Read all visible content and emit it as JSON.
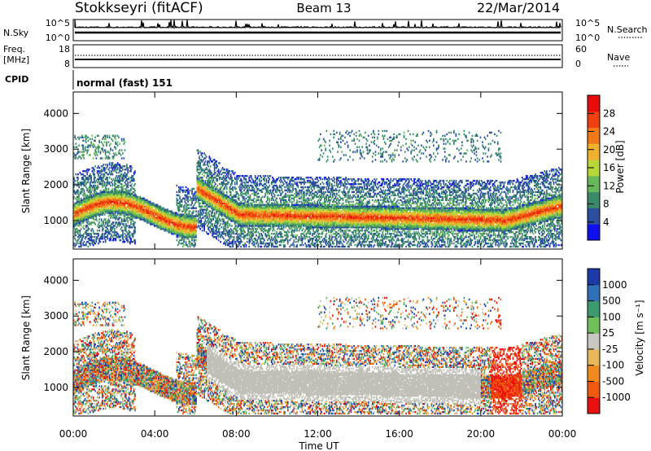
{
  "header": {
    "station": "Stokkseyri (fitACF)",
    "beam": "Beam 13",
    "date": "22/Mar/2014"
  },
  "aux_panels": {
    "nsky_label": "N.Sky",
    "nsky_ticks": [
      "10^5",
      "10^0"
    ],
    "nsearch_label": "N.Search",
    "nsearch_ticks": [
      "10^5",
      "10^0"
    ],
    "freq_label_1": "Freq.",
    "freq_label_2": "[MHz]",
    "freq_ticks": [
      "18",
      "8"
    ],
    "nave_label": "Nave",
    "nave_ticks": [
      "60",
      "0"
    ],
    "cpid_label": "CPID",
    "cpid_value": "normal (fast) 151"
  },
  "colors": {
    "power_scale": [
      "#1010ee",
      "#2b4f9e",
      "#3a8a6a",
      "#67b85a",
      "#b8d83a",
      "#f0b030",
      "#f07a18",
      "#ee4010",
      "#e80c0c"
    ],
    "velocity_scale": [
      "#1c3aa8",
      "#2f6fb8",
      "#3d9a6e",
      "#6fc05a",
      "#c8c8c0",
      "#e8b85a",
      "#f08a20",
      "#f05a10",
      "#e81010"
    ],
    "ground_scatter": "#c0c0b8"
  },
  "chart_data": [
    {
      "type": "heatmap",
      "title": "Power",
      "xlabel": "Time UT",
      "ylabel": "Slant Range [km]",
      "x_ticks": [
        "00:00",
        "04:00",
        "08:00",
        "12:00",
        "16:00",
        "20:00",
        "00:00"
      ],
      "xlim_hours": [
        0,
        24
      ],
      "ylim": [
        200,
        4600
      ],
      "y_ticks": [
        1000,
        2000,
        3000,
        4000
      ],
      "colorbar_label": "Power [dB]",
      "colorbar_ticks": [
        4,
        8,
        12,
        16,
        20,
        24,
        28
      ],
      "colorbar_range": [
        0,
        32
      ]
    },
    {
      "type": "heatmap",
      "title": "Velocity",
      "xlabel": "Time UT",
      "ylabel": "Slant Range [km]",
      "x_ticks": [
        "00:00",
        "04:00",
        "08:00",
        "12:00",
        "16:00",
        "20:00",
        "00:00"
      ],
      "xlim_hours": [
        0,
        24
      ],
      "ylim": [
        200,
        4600
      ],
      "y_ticks": [
        1000,
        2000,
        3000,
        4000
      ],
      "colorbar_label": "Velocity [m s⁻¹]",
      "colorbar_ticks": [
        "1000",
        "500",
        "100",
        "25",
        "-25",
        "-100",
        "-500",
        "-1000"
      ]
    }
  ]
}
